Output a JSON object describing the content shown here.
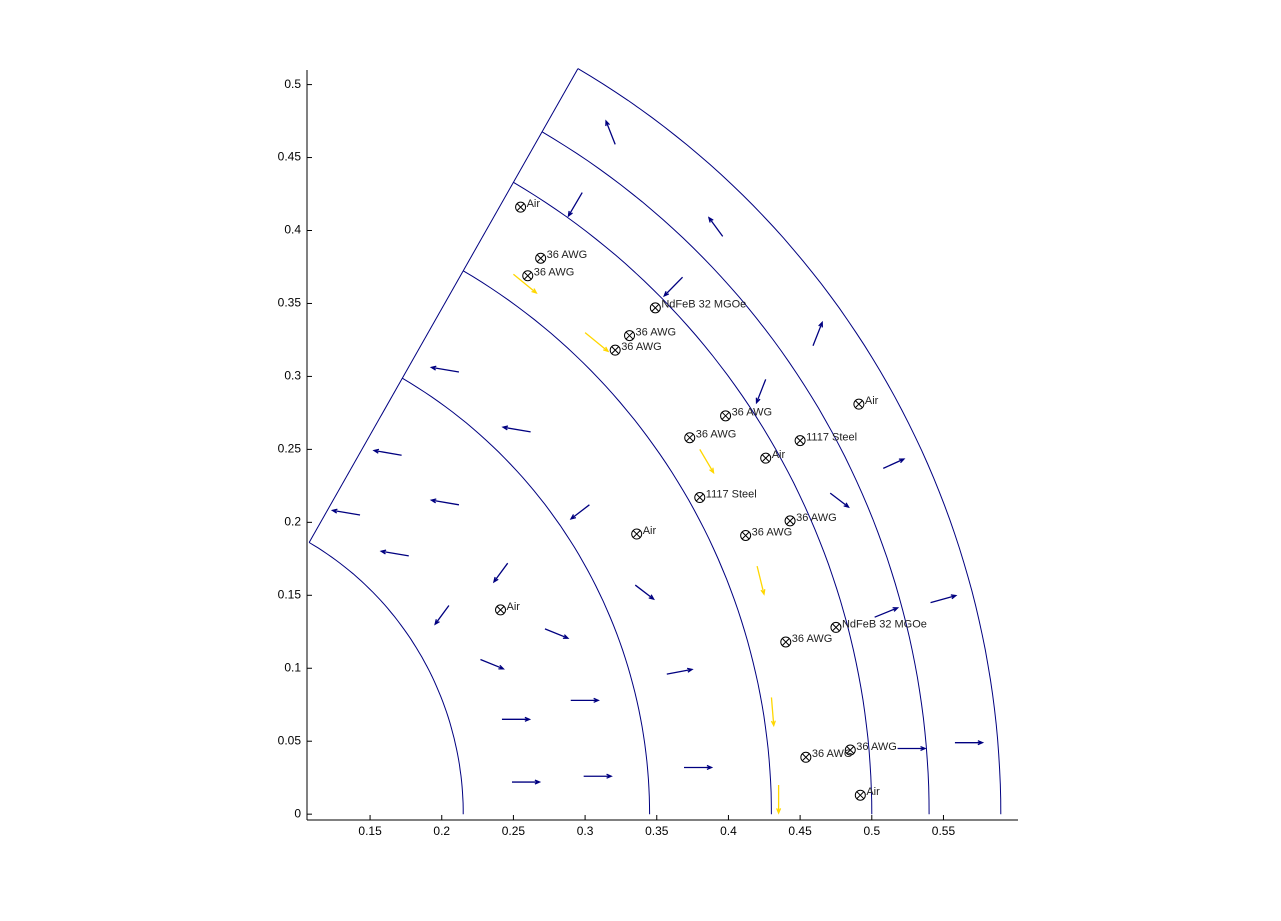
{
  "chart_data": {
    "type": "quiver",
    "xlim": [
      0.106,
      0.602
    ],
    "ylim": [
      -0.004,
      0.51
    ],
    "xticks": [
      0.15,
      0.2,
      0.25,
      0.3,
      0.35,
      0.4,
      0.45,
      0.5,
      0.55
    ],
    "yticks": [
      0,
      0.05,
      0.1,
      0.15,
      0.2,
      0.25,
      0.3,
      0.35,
      0.4,
      0.45,
      0.5
    ],
    "series": [
      {
        "color": "#000080",
        "x": [
          0.249,
          0.242,
          0.227,
          0.205,
          0.177,
          0.143,
          0.299,
          0.29,
          0.272,
          0.246,
          0.212,
          0.172,
          0.369,
          0.357,
          0.335,
          0.303,
          0.262,
          0.212,
          0.518,
          0.502,
          0.471,
          0.426,
          0.368,
          0.298,
          0.558,
          0.541,
          0.508,
          0.459,
          0.396,
          0.321
        ],
        "y": [
          0.022,
          0.065,
          0.106,
          0.143,
          0.177,
          0.205,
          0.026,
          0.078,
          0.127,
          0.172,
          0.212,
          0.246,
          0.032,
          0.096,
          0.157,
          0.212,
          0.262,
          0.303,
          0.045,
          0.135,
          0.22,
          0.298,
          0.368,
          0.426,
          0.049,
          0.145,
          0.237,
          0.321,
          0.396,
          0.459
        ],
        "u": [
          0.012,
          0.012,
          0.01,
          -0.006,
          -0.012,
          -0.012,
          0.012,
          0.012,
          0.01,
          -0.006,
          -0.012,
          -0.012,
          0.012,
          0.011,
          0.008,
          -0.008,
          -0.012,
          -0.012,
          0.012,
          0.01,
          0.008,
          -0.004,
          -0.008,
          -0.006,
          0.012,
          0.011,
          0.009,
          0.004,
          -0.006,
          -0.004
        ],
        "v": [
          0,
          0,
          -0.004,
          -0.008,
          0.002,
          0.002,
          0,
          0,
          -0.004,
          -0.008,
          0.002,
          0.002,
          0,
          0.002,
          -0.006,
          -0.006,
          0.002,
          0.002,
          0,
          0.004,
          -0.006,
          -0.01,
          -0.008,
          -0.01,
          0,
          0.003,
          0.004,
          0.01,
          0.008,
          0.01
        ]
      },
      {
        "color": "#ffd700",
        "x": [
          0.25,
          0.3,
          0.38,
          0.42,
          0.43,
          0.435
        ],
        "y": [
          0.37,
          0.33,
          0.25,
          0.17,
          0.08,
          0.02
        ],
        "u": [
          0.01,
          0.01,
          0.006,
          0.003,
          0.001,
          0
        ],
        "v": [
          -0.008,
          -0.008,
          -0.01,
          -0.012,
          -0.012,
          -0.012
        ]
      }
    ],
    "annotations": [
      {
        "x": 0.255,
        "y": 0.416,
        "text": "Air"
      },
      {
        "x": 0.269,
        "y": 0.381,
        "text": "36 AWG"
      },
      {
        "x": 0.26,
        "y": 0.369,
        "text": "36 AWG"
      },
      {
        "x": 0.349,
        "y": 0.347,
        "text": "NdFeB 32 MGOe"
      },
      {
        "x": 0.331,
        "y": 0.328,
        "text": "36 AWG"
      },
      {
        "x": 0.321,
        "y": 0.318,
        "text": "36 AWG"
      },
      {
        "x": 0.398,
        "y": 0.273,
        "text": "36 AWG"
      },
      {
        "x": 0.373,
        "y": 0.258,
        "text": "36 AWG"
      },
      {
        "x": 0.45,
        "y": 0.256,
        "text": "1117 Steel"
      },
      {
        "x": 0.426,
        "y": 0.244,
        "text": "Air"
      },
      {
        "x": 0.38,
        "y": 0.217,
        "text": "1117 Steel"
      },
      {
        "x": 0.336,
        "y": 0.192,
        "text": "Air"
      },
      {
        "x": 0.443,
        "y": 0.201,
        "text": "36 AWG"
      },
      {
        "x": 0.412,
        "y": 0.191,
        "text": "36 AWG"
      },
      {
        "x": 0.241,
        "y": 0.14,
        "text": "Air"
      },
      {
        "x": 0.475,
        "y": 0.128,
        "text": "NdFeB 32 MGOe"
      },
      {
        "x": 0.44,
        "y": 0.118,
        "text": "36 AWG"
      },
      {
        "x": 0.491,
        "y": 0.281,
        "text": "Air"
      },
      {
        "x": 0.485,
        "y": 0.044,
        "text": "36 AWG"
      },
      {
        "x": 0.454,
        "y": 0.039,
        "text": "36 AWG"
      },
      {
        "x": 0.492,
        "y": 0.013,
        "text": "Air"
      }
    ]
  }
}
